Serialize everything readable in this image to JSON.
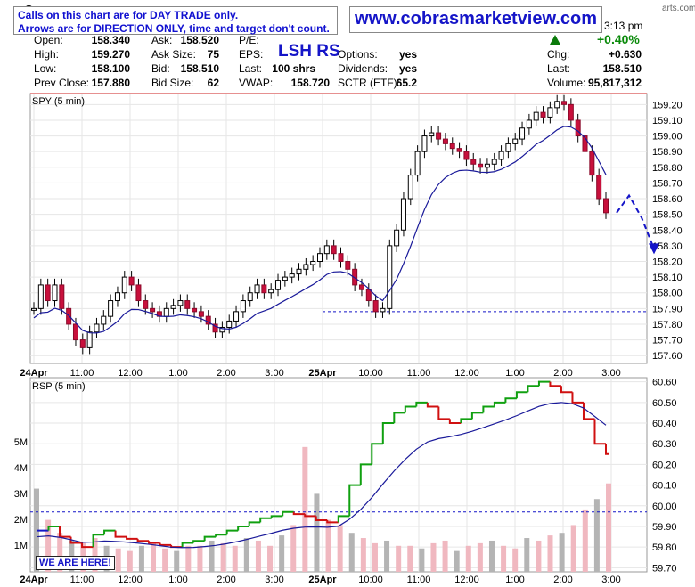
{
  "header": {
    "symbol_fragment": "S",
    "time_fragment": "3:13 pm",
    "site_fragment": "arts.com",
    "note_line1": "Calls on this chart are for DAY TRADE only.",
    "note_line2": "Arrows are for DIRECTION ONLY, time and target don't count.",
    "website": "www.cobrasmarketview.com",
    "center_label": "LSH RS",
    "change_pct": "+0.40%",
    "fields": [
      {
        "label": "Open:",
        "value": "158.340"
      },
      {
        "label": "High:",
        "value": "159.270"
      },
      {
        "label": "Low:",
        "value": "158.100"
      },
      {
        "label": "Prev Close:",
        "value": "157.880"
      },
      {
        "label": "Ask:",
        "value": "158.520"
      },
      {
        "label": "Ask Size:",
        "value": "75"
      },
      {
        "label": "Bid:",
        "value": "158.510"
      },
      {
        "label": "Bid Size:",
        "value": "62"
      },
      {
        "label": "P/E:",
        "value": ""
      },
      {
        "label": "EPS:",
        "value": ""
      },
      {
        "label": "Last:",
        "value": "100 shrs"
      },
      {
        "label": "VWAP:",
        "value": "158.720"
      },
      {
        "label": "Options:",
        "value": "yes"
      },
      {
        "label": "Dividends:",
        "value": "yes"
      },
      {
        "label": "SCTR (ETF):",
        "value": "65.2"
      },
      {
        "label": "Chg:",
        "value": "+0.630"
      },
      {
        "label": "Last:",
        "value": "158.510"
      },
      {
        "label": "Volume:",
        "value": "95,817,312"
      }
    ]
  },
  "annotation": "WE ARE HERE!",
  "chart_data": [
    {
      "type": "candlestick",
      "title": "SPY (5 min)",
      "y_ticks": [
        "159.20",
        "159.10",
        "159.00",
        "158.90",
        "158.80",
        "158.70",
        "158.60",
        "158.50",
        "158.40",
        "158.30",
        "158.20",
        "158.10",
        "158.00",
        "157.90",
        "157.80",
        "157.70",
        "157.60"
      ],
      "x_ticks": [
        "24Apr",
        "11:00",
        "12:00",
        "1:00",
        "2:00",
        "3:00",
        "25Apr",
        "10:00",
        "11:00",
        "12:00",
        "1:00",
        "2:00",
        "3:00"
      ],
      "ylim": [
        157.55,
        159.27
      ],
      "resistance_level": 159.27,
      "support_level": 157.88,
      "close_path": [
        157.9,
        158.05,
        157.95,
        158.05,
        157.9,
        157.8,
        157.7,
        157.65,
        157.75,
        157.8,
        157.85,
        157.95,
        158.0,
        158.1,
        158.05,
        157.95,
        157.9,
        157.88,
        157.85,
        157.9,
        157.92,
        157.95,
        157.9,
        157.88,
        157.85,
        157.8,
        157.75,
        157.78,
        157.82,
        157.88,
        157.95,
        158.0,
        158.05,
        158.0,
        158.02,
        158.08,
        158.1,
        158.12,
        158.15,
        158.18,
        158.2,
        158.25,
        158.3,
        158.25,
        158.2,
        158.15,
        158.05,
        158.02,
        157.95,
        157.88,
        157.9,
        158.3,
        158.4,
        158.6,
        158.75,
        158.9,
        159.0,
        159.02,
        158.98,
        158.95,
        158.92,
        158.9,
        158.85,
        158.82,
        158.8,
        158.82,
        158.85,
        158.9,
        158.95,
        158.98,
        159.05,
        159.1,
        159.15,
        159.12,
        159.18,
        159.22,
        159.2,
        159.1,
        159.0,
        158.9,
        158.75,
        158.6,
        158.51
      ],
      "forecast_path": [
        158.51,
        158.62,
        158.48,
        158.28
      ],
      "series": [
        {
          "name": "SPY"
        }
      ]
    },
    {
      "type": "line",
      "title": "RSP (5 min)",
      "y_ticks": [
        "60.60",
        "60.50",
        "60.40",
        "60.30",
        "60.20",
        "60.10",
        "60.00",
        "59.90",
        "59.80",
        "59.70"
      ],
      "volume_ticks": [
        "5M",
        "4M",
        "3M",
        "2M",
        "1M"
      ],
      "x_ticks": [
        "24Apr",
        "11:00",
        "12:00",
        "1:00",
        "2:00",
        "3:00",
        "25Apr",
        "10:00",
        "11:00",
        "12:00",
        "1:00",
        "2:00",
        "3:00"
      ],
      "ylim": [
        59.68,
        60.62
      ],
      "reference_level": 59.97,
      "price_path": [
        59.88,
        59.9,
        59.85,
        59.82,
        59.8,
        59.86,
        59.88,
        59.85,
        59.84,
        59.83,
        59.82,
        59.81,
        59.8,
        59.82,
        59.83,
        59.85,
        59.86,
        59.88,
        59.9,
        59.92,
        59.94,
        59.95,
        59.97,
        59.96,
        59.95,
        59.93,
        59.92,
        59.95,
        60.1,
        60.2,
        60.3,
        60.4,
        60.45,
        60.48,
        60.5,
        60.48,
        60.42,
        60.4,
        60.42,
        60.45,
        60.48,
        60.5,
        60.52,
        60.55,
        60.58,
        60.6,
        60.58,
        60.55,
        60.5,
        60.42,
        60.3,
        60.25
      ],
      "volume_path": [
        3.2,
        2.0,
        1.5,
        1.2,
        1.1,
        1.3,
        1.0,
        0.9,
        0.8,
        1.0,
        1.1,
        0.9,
        0.8,
        1.0,
        1.0,
        1.2,
        1.1,
        1.0,
        1.3,
        1.2,
        1.0,
        1.4,
        1.8,
        4.8,
        3.0,
        2.0,
        1.8,
        1.5,
        1.3,
        1.1,
        1.2,
        1.0,
        1.0,
        0.9,
        1.1,
        1.2,
        0.8,
        1.0,
        1.1,
        1.2,
        1.0,
        0.9,
        1.3,
        1.2,
        1.4,
        1.5,
        1.8,
        2.4,
        2.8,
        3.4
      ]
    }
  ]
}
